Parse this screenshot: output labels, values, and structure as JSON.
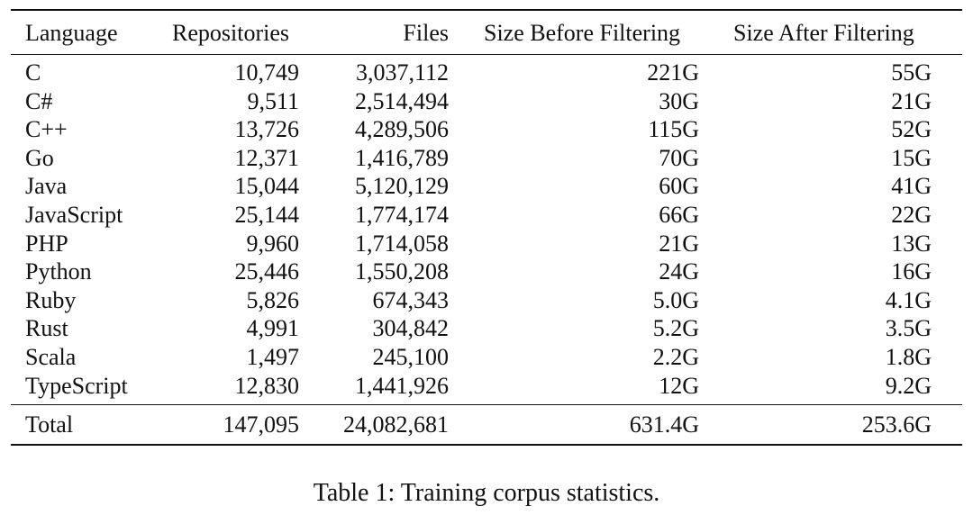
{
  "table": {
    "headers": {
      "language": "Language",
      "repositories": "Repositories",
      "files": "Files",
      "size_before": "Size Before Filtering",
      "size_after": "Size After Filtering"
    },
    "rows": [
      {
        "language": "C",
        "repositories": "10,749",
        "files": "3,037,112",
        "size_before": "221G",
        "size_after": "55G"
      },
      {
        "language": "C#",
        "repositories": "9,511",
        "files": "2,514,494",
        "size_before": "30G",
        "size_after": "21G"
      },
      {
        "language": "C++",
        "repositories": "13,726",
        "files": "4,289,506",
        "size_before": "115G",
        "size_after": "52G"
      },
      {
        "language": "Go",
        "repositories": "12,371",
        "files": "1,416,789",
        "size_before": "70G",
        "size_after": "15G"
      },
      {
        "language": "Java",
        "repositories": "15,044",
        "files": "5,120,129",
        "size_before": "60G",
        "size_after": "41G"
      },
      {
        "language": "JavaScript",
        "repositories": "25,144",
        "files": "1,774,174",
        "size_before": "66G",
        "size_after": "22G"
      },
      {
        "language": "PHP",
        "repositories": "9,960",
        "files": "1,714,058",
        "size_before": "21G",
        "size_after": "13G"
      },
      {
        "language": "Python",
        "repositories": "25,446",
        "files": "1,550,208",
        "size_before": "24G",
        "size_after": "16G"
      },
      {
        "language": "Ruby",
        "repositories": "5,826",
        "files": "674,343",
        "size_before": "5.0G",
        "size_after": "4.1G"
      },
      {
        "language": "Rust",
        "repositories": "4,991",
        "files": "304,842",
        "size_before": "5.2G",
        "size_after": "3.5G"
      },
      {
        "language": "Scala",
        "repositories": "1,497",
        "files": "245,100",
        "size_before": "2.2G",
        "size_after": "1.8G"
      },
      {
        "language": "TypeScript",
        "repositories": "12,830",
        "files": "1,441,926",
        "size_before": "12G",
        "size_after": "9.2G"
      }
    ],
    "total": {
      "language": "Total",
      "repositories": "147,095",
      "files": "24,082,681",
      "size_before": "631.4G",
      "size_after": "253.6G"
    }
  },
  "caption": "Table 1: Training corpus statistics."
}
